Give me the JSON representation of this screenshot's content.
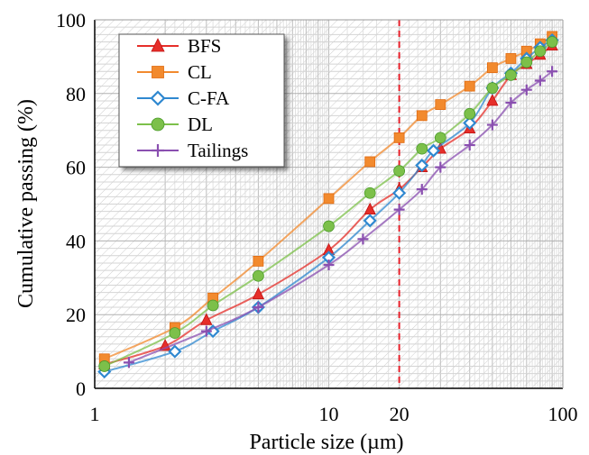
{
  "chart_data": {
    "type": "line",
    "xlabel": "Particle size (µm)",
    "ylabel": "Cumulative passing (%)",
    "x_scale": "log",
    "xlim": [
      1,
      100
    ],
    "ylim": [
      0,
      100
    ],
    "x_ticks": [
      1,
      10,
      20,
      100
    ],
    "y_ticks": [
      0,
      20,
      40,
      60,
      80,
      100
    ],
    "grid": true,
    "legend_position": "top-left",
    "reference_line": {
      "x": 20,
      "style": "dashed",
      "color": "#e8202a"
    },
    "series": [
      {
        "name": "BFS",
        "color": "#e62f2a",
        "marker": "triangle",
        "x": [
          1.1,
          2,
          3,
          5,
          10,
          15,
          20,
          25,
          30,
          40,
          50,
          60,
          70,
          80,
          90
        ],
        "y": [
          6.5,
          11.5,
          18.5,
          25.5,
          37.5,
          48.5,
          54,
          60,
          65,
          70.5,
          78,
          85,
          88,
          90.5,
          93
        ]
      },
      {
        "name": "CL",
        "color": "#f28a2e",
        "marker": "square",
        "x": [
          1.1,
          2.2,
          3.2,
          5,
          10,
          15,
          20,
          25,
          30,
          40,
          50,
          60,
          70,
          80,
          90
        ],
        "y": [
          8,
          16.5,
          24.5,
          34.5,
          51.5,
          61.5,
          68,
          74,
          77,
          82,
          87,
          89.5,
          91.5,
          93.5,
          95.5
        ]
      },
      {
        "name": "C-FA",
        "color": "#2f88d0",
        "marker": "diamond",
        "x": [
          1.1,
          2.2,
          3.2,
          5,
          10,
          15,
          20,
          25,
          28,
          40,
          50,
          60,
          70,
          80,
          90
        ],
        "y": [
          4.5,
          10,
          15.5,
          22,
          35.5,
          45.5,
          53,
          60.5,
          64.5,
          72,
          81.5,
          85.5,
          89.5,
          92.5,
          94.5
        ]
      },
      {
        "name": "DL",
        "color": "#7cc04a",
        "marker": "circle",
        "x": [
          1.1,
          2.2,
          3.2,
          5,
          10,
          15,
          20,
          25,
          30,
          40,
          50,
          60,
          70,
          80,
          90
        ],
        "y": [
          6,
          15,
          22.5,
          30.5,
          44,
          53,
          59,
          65,
          68,
          74.5,
          81.5,
          85,
          88.5,
          91.5,
          94
        ]
      },
      {
        "name": "Tailings",
        "color": "#8a4fb0",
        "marker": "plus",
        "x": [
          1.4,
          3,
          5,
          10,
          14,
          20,
          25,
          30,
          40,
          50,
          60,
          70,
          80,
          90
        ],
        "y": [
          7,
          15.5,
          22,
          33.5,
          40.5,
          48.5,
          54,
          60,
          66,
          71.5,
          77.5,
          81,
          83.5,
          86
        ]
      }
    ]
  }
}
